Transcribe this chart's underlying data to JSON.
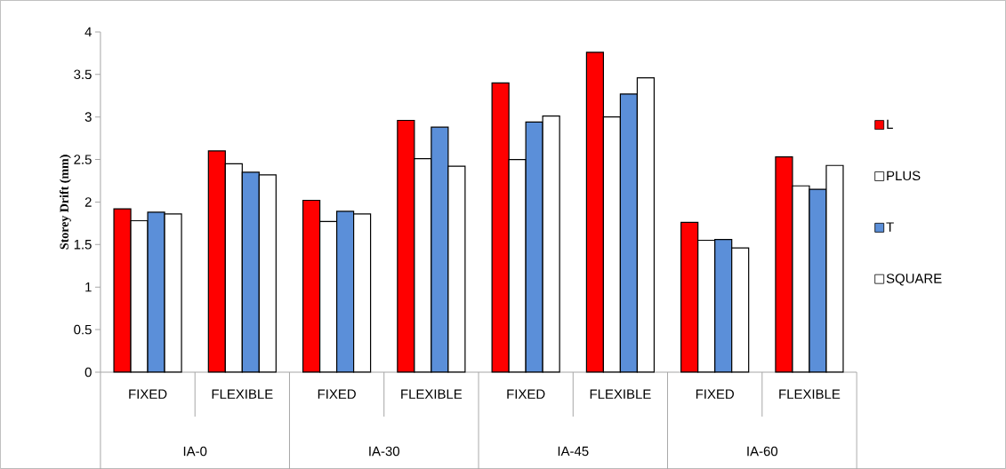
{
  "chart_data": {
    "type": "bar",
    "ylabel": "Storey Drift (mm)",
    "categories": [
      "FIXED",
      "FLEXIBLE",
      "FIXED",
      "FLEXIBLE",
      "FIXED",
      "FLEXIBLE",
      "FIXED",
      "FLEXIBLE"
    ],
    "series": [
      {
        "name": "L",
        "color": "#ff0000",
        "values": [
          1.92,
          2.6,
          2.02,
          2.96,
          3.4,
          3.76,
          1.76,
          2.53
        ]
      },
      {
        "name": "PLUS",
        "color": "#ffffff",
        "values": [
          1.78,
          2.45,
          1.77,
          2.51,
          2.5,
          3.0,
          1.55,
          2.19
        ]
      },
      {
        "name": "T",
        "color": "#5b8fd9",
        "values": [
          1.88,
          2.35,
          1.89,
          2.88,
          2.94,
          3.27,
          1.56,
          2.15
        ]
      },
      {
        "name": "SQUARE",
        "color": "#ffffff",
        "values": [
          1.86,
          2.32,
          1.86,
          2.42,
          3.01,
          3.46,
          1.46,
          2.43
        ]
      }
    ],
    "annotations": [
      "IA-0",
      "IA-30",
      "IA-45",
      "IA-60"
    ],
    "ylim": [
      0,
      4
    ],
    "yticks": [
      0,
      0.5,
      1,
      1.5,
      2,
      2.5,
      3,
      3.5,
      4
    ],
    "grid": false,
    "legend": "right"
  }
}
